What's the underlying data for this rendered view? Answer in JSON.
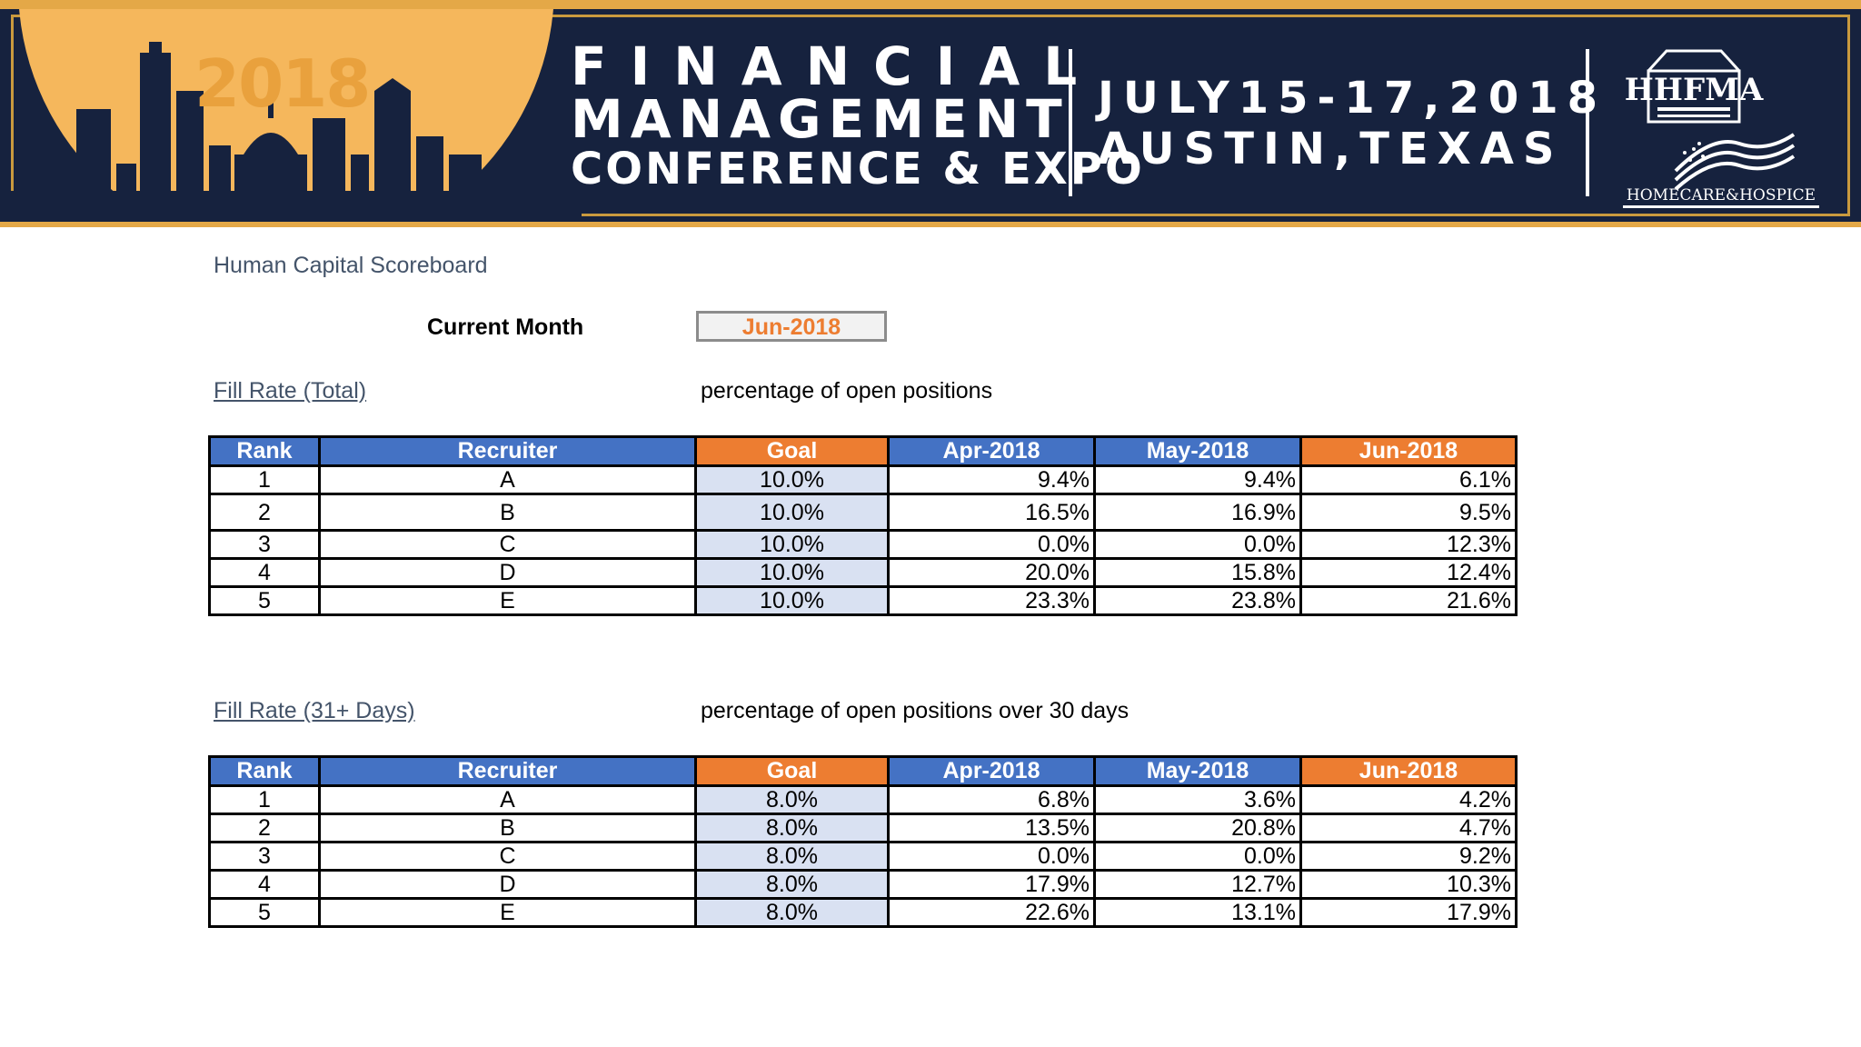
{
  "banner": {
    "year": "2018",
    "title_line1": "FINANCIAL",
    "title_line2": "MANAGEMENT",
    "title_line3": "CONFERENCE & EXPO",
    "date_line": "JULY15-17,2018",
    "location_line": "AUSTIN,TEXAS",
    "org_logo_text": "HHFMA",
    "org_logo_subtext": "HOMECARE&HOSPICE"
  },
  "scoreboard": {
    "title": "Human Capital Scoreboard",
    "current_month_label": "Current Month",
    "current_month_value": "Jun-2018"
  },
  "colors": {
    "header_blue": "#4472c4",
    "header_orange": "#ed7d31",
    "goal_fill": "#d9e1f2",
    "banner_navy": "#16223e",
    "banner_gold": "#f5b75c"
  },
  "tables": [
    {
      "title": "Fill Rate (Total)",
      "description": "percentage of open positions",
      "headers": [
        "Rank",
        "Recruiter",
        "Goal",
        "Apr-2018",
        "May-2018",
        "Jun-2018"
      ],
      "rows": [
        [
          "1",
          "A",
          "10.0%",
          "9.4%",
          "9.4%",
          "6.1%"
        ],
        [
          "2",
          "B",
          "10.0%",
          "16.5%",
          "16.9%",
          "9.5%"
        ],
        [
          "3",
          "C",
          "10.0%",
          "0.0%",
          "0.0%",
          "12.3%"
        ],
        [
          "4",
          "D",
          "10.0%",
          "20.0%",
          "15.8%",
          "12.4%"
        ],
        [
          "5",
          "E",
          "10.0%",
          "23.3%",
          "23.8%",
          "21.6%"
        ]
      ]
    },
    {
      "title": "Fill Rate (31+ Days)",
      "description": "percentage of open positions over 30 days",
      "headers": [
        "Rank",
        "Recruiter",
        "Goal",
        "Apr-2018",
        "May-2018",
        "Jun-2018"
      ],
      "rows": [
        [
          "1",
          "A",
          "8.0%",
          "6.8%",
          "3.6%",
          "4.2%"
        ],
        [
          "2",
          "B",
          "8.0%",
          "13.5%",
          "20.8%",
          "4.7%"
        ],
        [
          "3",
          "C",
          "8.0%",
          "0.0%",
          "0.0%",
          "9.2%"
        ],
        [
          "4",
          "D",
          "8.0%",
          "17.9%",
          "12.7%",
          "10.3%"
        ],
        [
          "5",
          "E",
          "8.0%",
          "22.6%",
          "13.1%",
          "17.9%"
        ]
      ]
    }
  ]
}
